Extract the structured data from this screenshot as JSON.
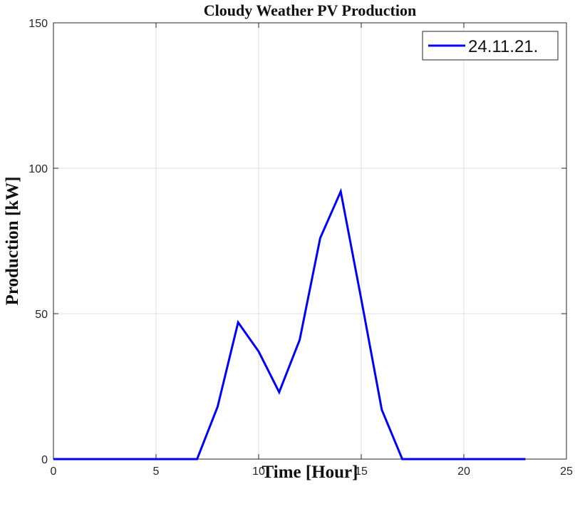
{
  "chart_data": {
    "type": "line",
    "title": "Cloudy Weather PV Production",
    "xlabel": "Time [Hour]",
    "ylabel": "Production [kW]",
    "xlim": [
      0,
      25
    ],
    "ylim": [
      0,
      150
    ],
    "xticks": [
      "0",
      "5",
      "10",
      "15",
      "20",
      "25"
    ],
    "yticks": [
      "0",
      "50",
      "100",
      "150"
    ],
    "grid": true,
    "legend_position": "top-right",
    "series": [
      {
        "name": "24.11.21.",
        "color": "#0000ff",
        "x": [
          0,
          1,
          2,
          3,
          4,
          5,
          6,
          7,
          8,
          9,
          10,
          11,
          12,
          13,
          14,
          15,
          16,
          17,
          18,
          19,
          20,
          21,
          22,
          23
        ],
        "y": [
          0,
          0,
          0,
          0,
          0,
          0,
          0,
          0,
          18,
          47,
          37,
          23,
          41,
          76,
          92,
          55,
          17,
          0,
          0,
          0,
          0,
          0,
          0,
          0
        ]
      }
    ]
  }
}
